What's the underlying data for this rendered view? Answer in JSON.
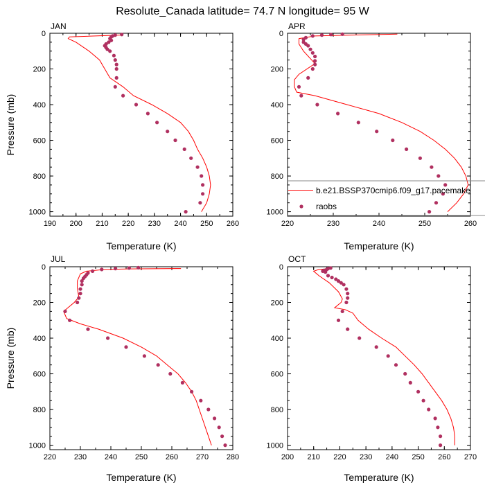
{
  "figure": {
    "title": "Resolute_Canada  latitude= 74.7 N longitude= 95 W"
  },
  "colors": {
    "model_line": "#ff0000",
    "obs_marker": "#b03060",
    "axis": "#000000",
    "background": "#ffffff"
  },
  "legend": {
    "model_label": "b.e21.BSSP370cmip6.f09_g17.pacemake",
    "obs_label": "raobs"
  },
  "chart_data": [
    {
      "type": "scatter",
      "panel": "JAN",
      "title": "JAN",
      "xlabel": "Temperature (K)",
      "ylabel": "Pressure (mb)",
      "xlim": [
        190,
        260
      ],
      "ylim": [
        0,
        1025
      ],
      "y_inverted": true,
      "xticks": [
        190,
        200,
        210,
        220,
        230,
        240,
        250,
        260
      ],
      "yticks": [
        0,
        200,
        400,
        600,
        800,
        1000
      ],
      "series": [
        {
          "name": "b.e21.BSSP370cmip6.f09_g17.pacemake",
          "kind": "line",
          "points": [
            [
              217,
              10
            ],
            [
              197.5,
              20
            ],
            [
              197,
              30
            ],
            [
              200,
              50
            ],
            [
              205,
              100
            ],
            [
              209,
              150
            ],
            [
              211,
              200
            ],
            [
              213,
              250
            ],
            [
              218,
              300
            ],
            [
              222,
              350
            ],
            [
              229,
              400
            ],
            [
              235,
              450
            ],
            [
              240,
              500
            ],
            [
              243,
              550
            ],
            [
              245,
              600
            ],
            [
              246.5,
              650
            ],
            [
              248.5,
              700
            ],
            [
              250,
              750
            ],
            [
              251,
              800
            ],
            [
              251.5,
              850
            ],
            [
              251,
              900
            ],
            [
              250,
              950
            ],
            [
              248,
              1000
            ]
          ]
        },
        {
          "name": "raobs",
          "kind": "markers",
          "points": [
            [
              217.5,
              7
            ],
            [
              215,
              10
            ],
            [
              214,
              15
            ],
            [
              213.5,
              20
            ],
            [
              213,
              30
            ],
            [
              213.5,
              40
            ],
            [
              212.5,
              50
            ],
            [
              211.5,
              60
            ],
            [
              211,
              70
            ],
            [
              211.5,
              80
            ],
            [
              212,
              90
            ],
            [
              213,
              100
            ],
            [
              214.5,
              125
            ],
            [
              215,
              150
            ],
            [
              215.5,
              175
            ],
            [
              215.5,
              200
            ],
            [
              215.5,
              250
            ],
            [
              215,
              300
            ],
            [
              218,
              350
            ],
            [
              223,
              400
            ],
            [
              227.5,
              450
            ],
            [
              231,
              500
            ],
            [
              235,
              550
            ],
            [
              238,
              600
            ],
            [
              241.5,
              650
            ],
            [
              244,
              700
            ],
            [
              246.5,
              750
            ],
            [
              248,
              800
            ],
            [
              248.5,
              850
            ],
            [
              248.5,
              900
            ],
            [
              247.5,
              950
            ],
            [
              242,
              1000
            ]
          ]
        }
      ]
    },
    {
      "type": "scatter",
      "panel": "APR",
      "title": "APR",
      "xlabel": "Temperature (K)",
      "ylabel": "",
      "xlim": [
        220,
        260
      ],
      "ylim": [
        0,
        1025
      ],
      "y_inverted": true,
      "xticks": [
        220,
        230,
        240,
        250,
        260
      ],
      "yticks": [
        0,
        200,
        400,
        600,
        800,
        1000
      ],
      "legend_position": "lower-right",
      "series": [
        {
          "name": "b.e21.BSSP370cmip6.f09_g17.pacemake",
          "kind": "line",
          "points": [
            [
              244,
              5
            ],
            [
              234,
              10
            ],
            [
              226,
              15
            ],
            [
              222.5,
              30
            ],
            [
              222.5,
              60
            ],
            [
              223.5,
              100
            ],
            [
              226,
              170
            ],
            [
              222.5,
              230
            ],
            [
              221.5,
              260
            ],
            [
              221.5,
              300
            ],
            [
              222,
              330
            ],
            [
              226,
              350
            ],
            [
              233,
              400
            ],
            [
              240,
              450
            ],
            [
              245,
              500
            ],
            [
              249,
              550
            ],
            [
              252,
              600
            ],
            [
              254.5,
              650
            ],
            [
              256.5,
              700
            ],
            [
              258,
              750
            ],
            [
              259,
              800
            ],
            [
              259.5,
              850
            ],
            [
              258.5,
              900
            ],
            [
              257,
              950
            ],
            [
              255,
              1000
            ]
          ]
        },
        {
          "name": "raobs",
          "kind": "markers",
          "points": [
            [
              232,
              5
            ],
            [
              229.5,
              7
            ],
            [
              227.5,
              10
            ],
            [
              225.5,
              15
            ],
            [
              224,
              25
            ],
            [
              223.5,
              35
            ],
            [
              223.5,
              50
            ],
            [
              224,
              60
            ],
            [
              224.5,
              70
            ],
            [
              225,
              90
            ],
            [
              225.5,
              110
            ],
            [
              226,
              130
            ],
            [
              226,
              155
            ],
            [
              226,
              175
            ],
            [
              225.5,
              200
            ],
            [
              224.5,
              250
            ],
            [
              222.5,
              300
            ],
            [
              223,
              350
            ],
            [
              226.5,
              400
            ],
            [
              231,
              450
            ],
            [
              235.5,
              500
            ],
            [
              239.5,
              550
            ],
            [
              243,
              600
            ],
            [
              246,
              650
            ],
            [
              249,
              700
            ],
            [
              251.5,
              750
            ],
            [
              253,
              800
            ],
            [
              254.5,
              850
            ],
            [
              254,
              900
            ],
            [
              252.5,
              950
            ],
            [
              251,
              1000
            ]
          ]
        }
      ]
    },
    {
      "type": "scatter",
      "panel": "JUL",
      "title": "JUL",
      "xlabel": "Temperature (K)",
      "ylabel": "Pressure (mb)",
      "xlim": [
        220,
        280
      ],
      "ylim": [
        0,
        1025
      ],
      "y_inverted": true,
      "xticks": [
        220,
        230,
        240,
        250,
        260,
        270,
        280
      ],
      "yticks": [
        0,
        200,
        400,
        600,
        800,
        1000
      ],
      "series": [
        {
          "name": "b.e21.BSSP370cmip6.f09_g17.pacemake",
          "kind": "line",
          "points": [
            [
              263,
              10
            ],
            [
              246,
              12
            ],
            [
              238,
              15
            ],
            [
              232,
              25
            ],
            [
              230,
              40
            ],
            [
              229,
              80
            ],
            [
              229,
              120
            ],
            [
              229.5,
              170
            ],
            [
              228,
              200
            ],
            [
              224.5,
              250
            ],
            [
              225.5,
              290
            ],
            [
              230,
              320
            ],
            [
              236,
              350
            ],
            [
              244,
              400
            ],
            [
              250,
              450
            ],
            [
              255,
              500
            ],
            [
              258.5,
              550
            ],
            [
              262,
              600
            ],
            [
              264.5,
              650
            ],
            [
              266.5,
              700
            ],
            [
              268,
              750
            ],
            [
              269,
              800
            ],
            [
              270,
              850
            ],
            [
              271,
              900
            ],
            [
              272,
              950
            ],
            [
              273,
              1000
            ]
          ]
        },
        {
          "name": "raobs",
          "kind": "markers",
          "points": [
            [
              249,
              5
            ],
            [
              246,
              7
            ],
            [
              241.5,
              10
            ],
            [
              237,
              15
            ],
            [
              234,
              25
            ],
            [
              232.5,
              35
            ],
            [
              232,
              45
            ],
            [
              231.5,
              55
            ],
            [
              231,
              65
            ],
            [
              230.5,
              80
            ],
            [
              230.5,
              100
            ],
            [
              230,
              125
            ],
            [
              230,
              150
            ],
            [
              229.5,
              175
            ],
            [
              229,
              200
            ],
            [
              225,
              250
            ],
            [
              226.5,
              300
            ],
            [
              232.5,
              350
            ],
            [
              239,
              400
            ],
            [
              245,
              450
            ],
            [
              251,
              500
            ],
            [
              255.5,
              550
            ],
            [
              259.5,
              600
            ],
            [
              263.5,
              650
            ],
            [
              266.5,
              700
            ],
            [
              269.5,
              750
            ],
            [
              272,
              800
            ],
            [
              274,
              850
            ],
            [
              275.5,
              900
            ],
            [
              276.5,
              950
            ],
            [
              277.5,
              1000
            ]
          ]
        }
      ]
    },
    {
      "type": "scatter",
      "panel": "OCT",
      "title": "OCT",
      "xlabel": "Temperature (K)",
      "ylabel": "",
      "xlim": [
        200,
        270
      ],
      "ylim": [
        0,
        1025
      ],
      "y_inverted": true,
      "xticks": [
        200,
        210,
        220,
        230,
        240,
        250,
        260,
        270
      ],
      "yticks": [
        0,
        200,
        400,
        600,
        800,
        1000
      ],
      "series": [
        {
          "name": "b.e21.BSSP370cmip6.f09_g17.pacemake",
          "kind": "line",
          "points": [
            [
              217,
              10
            ],
            [
              212,
              15
            ],
            [
              210,
              25
            ],
            [
              212,
              50
            ],
            [
              216,
              90
            ],
            [
              219.5,
              140
            ],
            [
              221,
              180
            ],
            [
              220.5,
              200
            ],
            [
              218,
              230
            ],
            [
              222,
              240
            ],
            [
              225,
              260
            ],
            [
              227,
              300
            ],
            [
              231,
              350
            ],
            [
              236,
              400
            ],
            [
              241.5,
              450
            ],
            [
              245,
              500
            ],
            [
              248.5,
              550
            ],
            [
              251.5,
              600
            ],
            [
              254,
              650
            ],
            [
              256.5,
              700
            ],
            [
              259,
              750
            ],
            [
              261,
              800
            ],
            [
              262.5,
              850
            ],
            [
              263.5,
              900
            ],
            [
              264,
              950
            ],
            [
              264,
              1000
            ]
          ]
        },
        {
          "name": "raobs",
          "kind": "markers",
          "points": [
            [
              216.5,
              7
            ],
            [
              215.5,
              10
            ],
            [
              215,
              15
            ],
            [
              214,
              20
            ],
            [
              213.5,
              25
            ],
            [
              214.5,
              30
            ],
            [
              215.5,
              50
            ],
            [
              217,
              60
            ],
            [
              218.5,
              70
            ],
            [
              219.5,
              80
            ],
            [
              220.5,
              90
            ],
            [
              221.5,
              100
            ],
            [
              222.5,
              125
            ],
            [
              223,
              150
            ],
            [
              223,
              175
            ],
            [
              222.5,
              200
            ],
            [
              221,
              250
            ],
            [
              219.5,
              300
            ],
            [
              223,
              350
            ],
            [
              227.5,
              400
            ],
            [
              234,
              450
            ],
            [
              238.5,
              500
            ],
            [
              241.5,
              550
            ],
            [
              245,
              600
            ],
            [
              247,
              650
            ],
            [
              250,
              700
            ],
            [
              252,
              750
            ],
            [
              254,
              800
            ],
            [
              256.5,
              850
            ],
            [
              257.5,
              900
            ],
            [
              258.5,
              950
            ],
            [
              258.5,
              1000
            ]
          ]
        }
      ]
    }
  ]
}
